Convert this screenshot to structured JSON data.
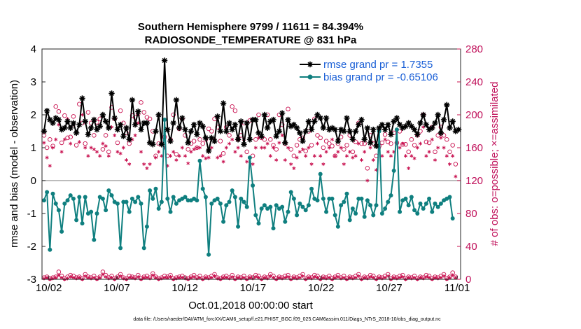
{
  "chart_data": {
    "type": "line",
    "title_line1": "Southern Hemisphere 9799 / 11611 = 84.394%",
    "title_line2": "RADIOSONDE_TEMPERATURE @ 831 hPa",
    "xlabel": "Oct.01,2018 00:00:00 start",
    "ylabel_left": "rmse and bias (model - observation)",
    "ylabel_right": "# of obs: o=possible; ×=assimilated",
    "x_ticks": [
      "10/02",
      "10/07",
      "10/12",
      "10/17",
      "10/22",
      "10/27",
      "11/01"
    ],
    "x_tick_days": [
      1,
      6,
      11,
      16,
      21,
      26,
      31
    ],
    "xlim_days": [
      0.5,
      31.25
    ],
    "ylim_left": [
      -3,
      4
    ],
    "y_ticks_left": [
      "-3",
      "-2",
      "-1",
      "0",
      "1",
      "2",
      "3",
      "4"
    ],
    "ylim_right": [
      0,
      280
    ],
    "y_ticks_right": [
      "0",
      "40",
      "80",
      "120",
      "160",
      "200",
      "240",
      "280"
    ],
    "footnote": "data file: /Users/raeder/DAI/ATM_forcXX/CAM6_setup/f.e21.FHIST_BGC.f09_025.CAM6assim.011/Diags_NTrS_2018-10/obs_diag_output.nc",
    "colors": {
      "rmse": "#000000",
      "bias": "#0f7f7f",
      "obs": "#c8104f",
      "legend_text": "#1a5fd6",
      "zero_line": "#a6a6a6"
    },
    "series": [
      {
        "name": "rmse grand pr = 1.7355",
        "axis": "left",
        "style": "line-star",
        "values": [
          1.5,
          2.12,
          1.85,
          1.75,
          1.9,
          1.85,
          1.55,
          1.6,
          1.8,
          1.6,
          1.75,
          1.45,
          1.7,
          2.5,
          1.8,
          1.4,
          1.6,
          1.85,
          1.55,
          1.65,
          2.0,
          1.8,
          1.6,
          2.65,
          1.9,
          1.55,
          1.7,
          1.35,
          1.6,
          1.25,
          2.45,
          1.7,
          2.1,
          1.55,
          1.75,
          1.75,
          1.15,
          1.1,
          1.5,
          2.0,
          1.1,
          3.65,
          1.55,
          1.2,
          1.75,
          2.45,
          1.6,
          1.9,
          1.55,
          1.15,
          1.5,
          1.7,
          1.4,
          1.75,
          1.65,
          1.3,
          0.9,
          1.3,
          1.2,
          1.95,
          1.5,
          2.35,
          1.5,
          1.75,
          1.55,
          1.7,
          1.25,
          1.8,
          1.1,
          1.75,
          1.25,
          1.85,
          1.85,
          1.45,
          1.35,
          2.0,
          1.6,
          1.8,
          1.85,
          1.35,
          1.5,
          2.05,
          1.15,
          1.85,
          1.65,
          1.7,
          1.6,
          1.45,
          1.2,
          1.5,
          1.8,
          1.55,
          1.8,
          2.0,
          1.9,
          1.6,
          1.9,
          1.55,
          1.6,
          1.55,
          1.2,
          1.55,
          1.5,
          1.9,
          1.5,
          1.25,
          1.5,
          1.7,
          1.85,
          1.25,
          1.6,
          1.15,
          1.55,
          1.05,
          1.6,
          1.7,
          1.55,
          1.7,
          1.4,
          1.8,
          1.9,
          1.7,
          1.6,
          1.65,
          1.75,
          1.65,
          1.55,
          1.4,
          1.75,
          2.0,
          1.7,
          1.55,
          1.6,
          1.75,
          2.0,
          1.45,
          1.85,
          2.3,
          1.6,
          1.8,
          1.5,
          1.55
        ]
      },
      {
        "name": "bias grand pr = -0.65106",
        "axis": "left",
        "style": "line-dot",
        "values": [
          -0.6,
          -0.35,
          -2.1,
          -0.4,
          -0.7,
          -0.9,
          -1.55,
          -0.7,
          -0.6,
          -0.45,
          -0.55,
          -1.2,
          -0.5,
          -1.3,
          -0.5,
          -1.0,
          -0.95,
          -1.8,
          -1.0,
          -0.5,
          -0.55,
          -0.9,
          -0.3,
          -0.45,
          -0.65,
          -0.7,
          -2.05,
          -0.65,
          -0.65,
          -0.95,
          -0.55,
          -0.65,
          -0.5,
          -0.7,
          -2.05,
          -1.4,
          -0.3,
          -0.55,
          -0.25,
          -0.85,
          -0.65,
          1.85,
          -0.55,
          -0.95,
          -0.5,
          -0.7,
          -0.6,
          -0.55,
          -0.5,
          -0.6,
          -0.6,
          -0.55,
          -0.6,
          0.6,
          -0.25,
          -0.5,
          -2.25,
          -0.7,
          -0.6,
          -0.55,
          -0.7,
          -1.25,
          -0.75,
          -0.65,
          -0.3,
          -0.5,
          -1.4,
          -0.55,
          -0.65,
          -0.8,
          0.7,
          -0.15,
          -1.05,
          -1.3,
          -0.85,
          -0.75,
          -0.85,
          -0.8,
          -1.45,
          -0.75,
          -0.85,
          -0.8,
          -1.25,
          -0.95,
          -0.35,
          -0.55,
          -1.05,
          -0.7,
          -0.8,
          -0.9,
          -0.75,
          -0.25,
          -0.55,
          -0.6,
          0.2,
          -0.55,
          -0.95,
          -0.55,
          -0.55,
          -1.05,
          -1.4,
          -0.75,
          -0.65,
          -0.4,
          -1.2,
          -0.85,
          -1.0,
          -0.55,
          -0.55,
          -1.1,
          -0.6,
          -0.75,
          -1.05,
          -0.75,
          1.5,
          -1.0,
          -0.85,
          -0.65,
          -0.45,
          0.3,
          1.55,
          -0.95,
          -0.6,
          -0.55,
          -0.75,
          -0.5,
          -0.9,
          -1.0,
          -0.7,
          -0.85,
          -0.7,
          -0.55,
          -0.95,
          -0.7,
          -0.8,
          -0.7,
          -0.6,
          -0.55,
          -0.5,
          -1.15
        ]
      },
      {
        "name": "possible",
        "axis": "right",
        "style": "circle",
        "values": [
          175,
          160,
          170,
          162,
          210,
          204,
          166,
          199,
          172,
          173,
          198,
          163,
          213,
          190,
          165,
          203,
          190,
          175,
          191,
          195,
          158,
          175,
          155,
          209,
          195,
          166,
          205,
          190,
          178,
          165,
          199,
          197,
          201,
          215,
          203,
          197,
          195,
          180,
          150,
          165,
          165,
          173,
          150,
          170,
          200,
          152,
          183,
          195,
          175,
          158,
          165,
          168,
          160,
          170,
          165,
          170,
          183,
          180,
          195,
          185,
          168,
          153,
          185,
          175,
          210,
          205,
          170,
          175,
          190,
          155,
          193,
          150,
          170,
          200,
          172,
          170,
          200,
          170,
          163,
          158,
          200,
          188,
          165,
          207,
          158,
          150,
          163,
          170,
          172,
          156,
          180,
          163,
          195,
          175,
          172,
          160,
          168,
          165,
          162,
          150,
          165,
          173,
          158,
          163,
          175,
          155,
          167,
          190,
          165,
          165,
          135,
          175,
          165,
          150,
          162,
          166,
          176,
          167,
          165,
          178,
          166,
          180,
          164,
          164,
          155,
          170,
          163,
          175,
          180,
          200,
          167,
          166,
          185,
          155,
          175,
          185,
          175,
          170,
          155,
          163,
          140
        ]
      },
      {
        "name": "assimilated",
        "axis": "right",
        "style": "asterisk",
        "values": [
          166,
          148,
          138,
          160,
          170,
          188,
          155,
          170,
          195,
          165,
          188,
          179,
          167,
          200,
          160,
          150,
          160,
          158,
          155,
          150,
          165,
          162,
          150,
          185,
          175,
          155,
          153,
          160,
          145,
          140,
          170,
          175,
          190,
          155,
          140,
          135,
          140,
          165,
          148,
          155,
          150,
          160,
          138,
          150,
          155,
          145,
          150,
          160,
          150,
          141,
          155,
          158,
          160,
          160,
          150,
          147,
          148,
          160,
          170,
          148,
          150,
          143,
          160,
          165,
          170,
          155,
          160,
          150,
          170,
          143,
          148,
          140,
          160,
          172,
          160,
          160,
          165,
          150,
          160,
          145,
          166,
          175,
          145,
          160,
          140,
          135,
          148,
          155,
          158,
          150,
          160,
          140,
          150,
          165,
          150,
          140,
          155,
          160,
          170,
          150,
          155,
          160,
          140,
          150,
          155,
          148,
          150,
          165,
          145,
          155,
          120,
          160,
          145,
          133,
          160,
          150,
          170,
          155,
          150,
          155,
          165,
          160,
          165,
          150,
          135,
          150,
          147,
          160,
          165,
          185,
          150,
          155,
          170,
          145,
          160,
          172,
          160,
          150,
          140,
          150,
          125
        ]
      },
      {
        "name": "possible_lower",
        "axis": "right",
        "style": "circle",
        "values": [
          2,
          3,
          1,
          2,
          3,
          9,
          4,
          1,
          3,
          5,
          4,
          2,
          3,
          1,
          6,
          3,
          2,
          4,
          1,
          3,
          9,
          5,
          2,
          4,
          1,
          3,
          6,
          2,
          1,
          4,
          3,
          2,
          5,
          1,
          3,
          4,
          2,
          7,
          3,
          1,
          2,
          4,
          3,
          5,
          1,
          2,
          3,
          4,
          2,
          1,
          3,
          5,
          2,
          4,
          1,
          3,
          2,
          4,
          6,
          2,
          1,
          3,
          4,
          2,
          5,
          1,
          3,
          2,
          4,
          1,
          3,
          2,
          5,
          4,
          1,
          3,
          2,
          6,
          4,
          1,
          3,
          2,
          4,
          5,
          1,
          3,
          2,
          4,
          6,
          1,
          3,
          2,
          5,
          4,
          1,
          3,
          2,
          4,
          1,
          3,
          5,
          2,
          4,
          1,
          3,
          2,
          4,
          6,
          1,
          3,
          2,
          5,
          4,
          1,
          3,
          2,
          4,
          6,
          1,
          3,
          2,
          4,
          5,
          1,
          3,
          2,
          4,
          1,
          3,
          2,
          5,
          4,
          1,
          3,
          2,
          4,
          6,
          1,
          3,
          8,
          3
        ]
      },
      {
        "name": "assimilated_lower",
        "axis": "right",
        "style": "asterisk",
        "values": [
          1,
          2,
          0,
          1,
          2,
          5,
          2,
          0,
          1,
          3,
          2,
          1,
          2,
          0,
          4,
          2,
          1,
          2,
          0,
          2,
          6,
          3,
          1,
          2,
          0,
          2,
          4,
          1,
          0,
          2,
          2,
          1,
          3,
          0,
          2,
          2,
          1,
          5,
          2,
          0,
          1,
          2,
          2,
          3,
          0,
          1,
          2,
          2,
          1,
          0,
          2,
          3,
          1,
          2,
          0,
          2,
          1,
          2,
          4,
          1,
          0,
          2,
          2,
          1,
          3,
          0,
          2,
          1,
          2,
          0,
          2,
          1,
          3,
          2,
          0,
          2,
          1,
          4,
          2,
          0,
          2,
          1,
          2,
          3,
          0,
          2,
          1,
          2,
          4,
          0,
          2,
          1,
          3,
          2,
          0,
          2,
          1,
          2,
          0,
          2,
          3,
          1,
          2,
          0,
          2,
          1,
          2,
          4,
          0,
          2,
          1,
          3,
          2,
          0,
          2,
          1,
          2,
          4,
          0,
          2,
          1,
          2,
          3,
          0,
          2,
          1,
          2,
          0,
          2,
          1,
          3,
          2,
          0,
          2,
          1,
          2,
          4,
          0,
          2,
          5,
          2
        ]
      }
    ]
  }
}
